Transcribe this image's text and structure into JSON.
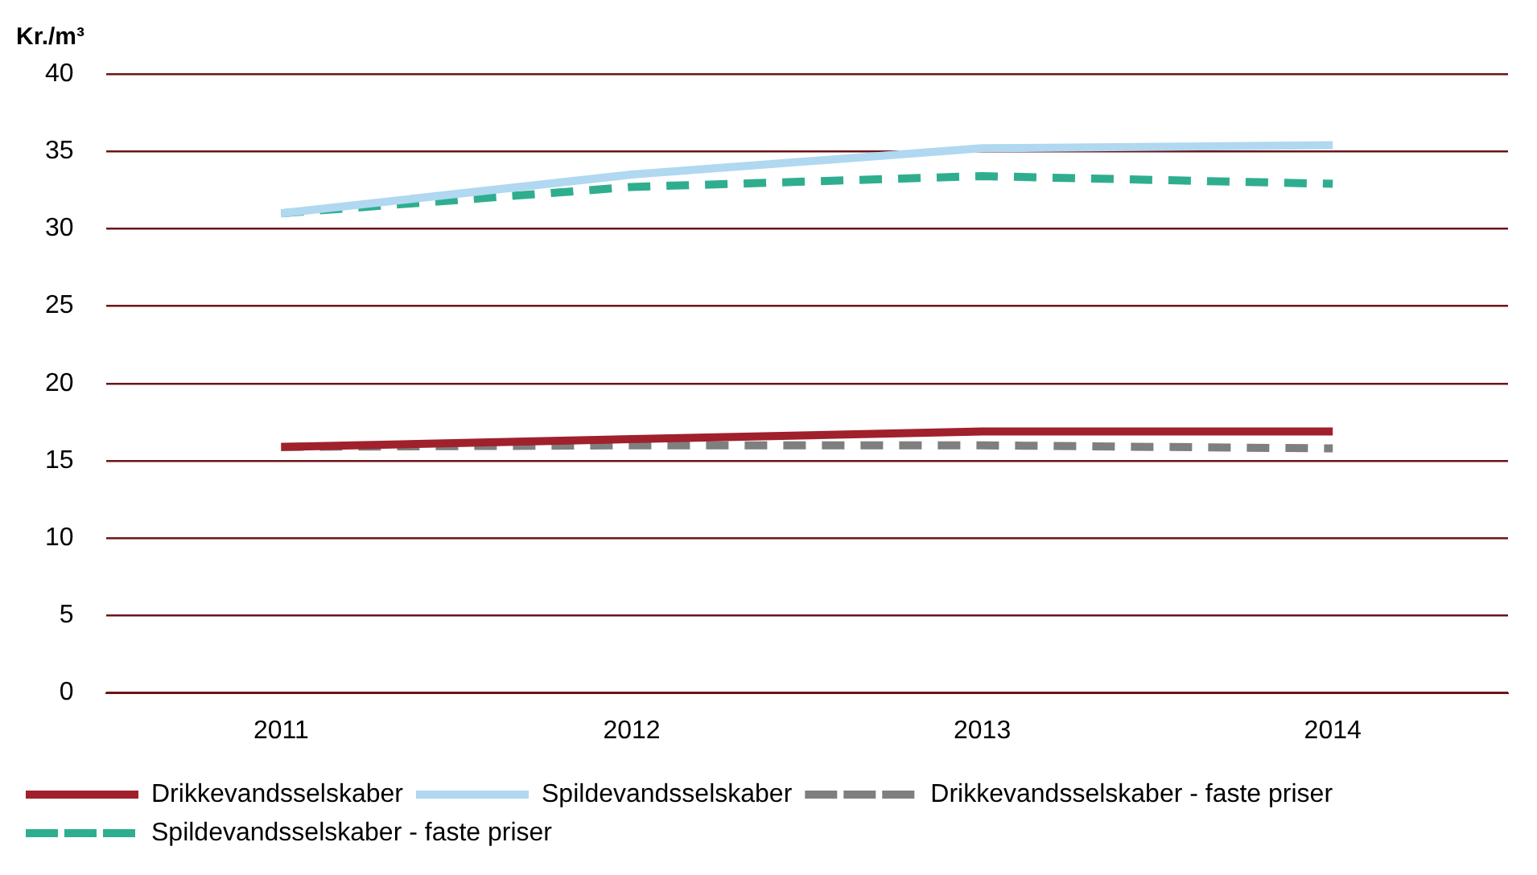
{
  "chart_data": {
    "type": "line",
    "ylabel": "Kr./m³",
    "categories": [
      "2011",
      "2012",
      "2013",
      "2014"
    ],
    "series": [
      {
        "name": "Drikkevandsselskaber",
        "color": "#a0202c",
        "values": [
          15.9,
          16.4,
          16.9,
          16.9
        ],
        "line_style": "solid"
      },
      {
        "name": "Spildevandsselskaber",
        "color": "#b0d8f0",
        "values": [
          31.0,
          33.5,
          35.2,
          35.4
        ],
        "line_style": "solid"
      },
      {
        "name": "Drikkevandsselskaber - faste priser",
        "color": "#7f7f7f",
        "values": [
          15.9,
          16.0,
          16.0,
          15.8
        ],
        "line_style": "dashed"
      },
      {
        "name": "Spildevandsselskaber - faste priser",
        "color": "#2fae8f",
        "values": [
          31.0,
          32.7,
          33.4,
          32.9
        ],
        "line_style": "dashed"
      }
    ],
    "ylim": [
      0,
      40
    ],
    "yticks": [
      0,
      5,
      10,
      15,
      20,
      25,
      30,
      35,
      40
    ],
    "grid": "y",
    "legend": "bottom",
    "marker": "none"
  }
}
